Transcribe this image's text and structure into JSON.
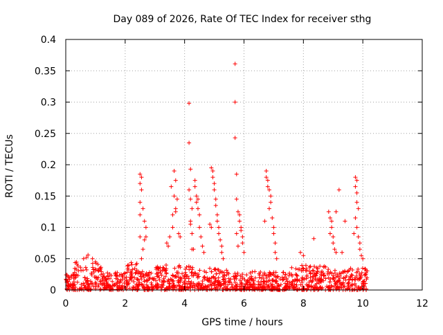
{
  "chart_data": {
    "type": "scatter",
    "title": "Day 089 of 2026, Rate Of TEC Index for receiver sthg",
    "xlabel": "GPS time / hours",
    "ylabel": "ROTI / TECUs",
    "xlim": [
      0,
      12
    ],
    "ylim": [
      0,
      0.4
    ],
    "x_ticks": [
      0,
      2,
      4,
      6,
      8,
      10,
      12
    ],
    "y_ticks": [
      0,
      0.05,
      0.1,
      0.15,
      0.2,
      0.25,
      0.3,
      0.35,
      0.4
    ],
    "x_tick_labels": [
      "0",
      "2",
      "4",
      "6",
      "8",
      "10",
      "12"
    ],
    "y_tick_labels": [
      "0",
      "0.05",
      "0.1",
      "0.15",
      "0.2",
      "0.25",
      "0.3",
      "0.35",
      "0.4"
    ],
    "grid": true,
    "marker": "+",
    "color": "#ff0000",
    "series": [
      {
        "name": "ROTI",
        "notes": "dense background cluster 0.0-0.05 TECU from 0 to ~10.2 h; selected elevated points listed",
        "points": [
          [
            0.6,
            0.05
          ],
          [
            0.7,
            0.052
          ],
          [
            0.75,
            0.056
          ],
          [
            0.9,
            0.05
          ],
          [
            1.0,
            0.045
          ],
          [
            2.5,
            0.185
          ],
          [
            2.55,
            0.18
          ],
          [
            2.5,
            0.17
          ],
          [
            2.55,
            0.16
          ],
          [
            2.5,
            0.14
          ],
          [
            2.6,
            0.13
          ],
          [
            2.65,
            0.11
          ],
          [
            2.7,
            0.1
          ],
          [
            2.7,
            0.085
          ],
          [
            2.65,
            0.08
          ],
          [
            2.5,
            0.12
          ],
          [
            2.5,
            0.085
          ],
          [
            2.6,
            0.065
          ],
          [
            2.55,
            0.05
          ],
          [
            3.4,
            0.075
          ],
          [
            3.45,
            0.07
          ],
          [
            3.5,
            0.085
          ],
          [
            3.6,
            0.12
          ],
          [
            3.6,
            0.1
          ],
          [
            3.65,
            0.19
          ],
          [
            3.7,
            0.175
          ],
          [
            3.65,
            0.15
          ],
          [
            3.75,
            0.145
          ],
          [
            3.7,
            0.13
          ],
          [
            3.7,
            0.125
          ],
          [
            3.8,
            0.09
          ],
          [
            3.85,
            0.085
          ],
          [
            3.55,
            0.165
          ],
          [
            4.15,
            0.298
          ],
          [
            4.15,
            0.235
          ],
          [
            4.2,
            0.193
          ],
          [
            4.15,
            0.16
          ],
          [
            4.2,
            0.145
          ],
          [
            4.25,
            0.13
          ],
          [
            4.2,
            0.11
          ],
          [
            4.2,
            0.105
          ],
          [
            4.25,
            0.09
          ],
          [
            4.25,
            0.065
          ],
          [
            4.35,
            0.175
          ],
          [
            4.35,
            0.165
          ],
          [
            4.4,
            0.15
          ],
          [
            4.45,
            0.145
          ],
          [
            4.4,
            0.14
          ],
          [
            4.45,
            0.13
          ],
          [
            4.5,
            0.12
          ],
          [
            4.5,
            0.1
          ],
          [
            4.55,
            0.085
          ],
          [
            4.6,
            0.07
          ],
          [
            4.65,
            0.06
          ],
          [
            4.3,
            0.065
          ],
          [
            4.9,
            0.195
          ],
          [
            4.95,
            0.19
          ],
          [
            4.95,
            0.18
          ],
          [
            5.0,
            0.17
          ],
          [
            5.0,
            0.16
          ],
          [
            5.05,
            0.145
          ],
          [
            5.05,
            0.135
          ],
          [
            5.1,
            0.12
          ],
          [
            5.1,
            0.11
          ],
          [
            5.15,
            0.1
          ],
          [
            5.15,
            0.09
          ],
          [
            5.2,
            0.08
          ],
          [
            5.25,
            0.07
          ],
          [
            5.25,
            0.06
          ],
          [
            4.85,
            0.105
          ],
          [
            4.9,
            0.1
          ],
          [
            5.3,
            0.05
          ],
          [
            5.7,
            0.361
          ],
          [
            5.7,
            0.3
          ],
          [
            5.7,
            0.243
          ],
          [
            5.75,
            0.185
          ],
          [
            5.75,
            0.145
          ],
          [
            5.8,
            0.125
          ],
          [
            5.85,
            0.12
          ],
          [
            5.85,
            0.11
          ],
          [
            5.9,
            0.1
          ],
          [
            5.9,
            0.095
          ],
          [
            5.95,
            0.085
          ],
          [
            5.95,
            0.075
          ],
          [
            5.75,
            0.09
          ],
          [
            5.8,
            0.07
          ],
          [
            6.0,
            0.06
          ],
          [
            6.75,
            0.19
          ],
          [
            6.75,
            0.18
          ],
          [
            6.8,
            0.175
          ],
          [
            6.8,
            0.165
          ],
          [
            6.85,
            0.16
          ],
          [
            6.9,
            0.15
          ],
          [
            6.9,
            0.14
          ],
          [
            6.85,
            0.13
          ],
          [
            6.95,
            0.115
          ],
          [
            7.0,
            0.1
          ],
          [
            7.0,
            0.09
          ],
          [
            7.05,
            0.075
          ],
          [
            7.05,
            0.06
          ],
          [
            7.1,
            0.05
          ],
          [
            6.7,
            0.11
          ],
          [
            7.9,
            0.06
          ],
          [
            8.0,
            0.055
          ],
          [
            8.35,
            0.082
          ],
          [
            8.85,
            0.125
          ],
          [
            8.9,
            0.115
          ],
          [
            8.95,
            0.11
          ],
          [
            8.95,
            0.1
          ],
          [
            9.0,
            0.085
          ],
          [
            9.0,
            0.075
          ],
          [
            9.05,
            0.065
          ],
          [
            9.1,
            0.06
          ],
          [
            9.1,
            0.125
          ],
          [
            8.9,
            0.09
          ],
          [
            9.2,
            0.16
          ],
          [
            9.4,
            0.11
          ],
          [
            9.3,
            0.06
          ],
          [
            9.75,
            0.18
          ],
          [
            9.8,
            0.175
          ],
          [
            9.75,
            0.165
          ],
          [
            9.8,
            0.155
          ],
          [
            9.8,
            0.14
          ],
          [
            9.85,
            0.13
          ],
          [
            9.75,
            0.115
          ],
          [
            9.8,
            0.1
          ],
          [
            9.85,
            0.085
          ],
          [
            9.9,
            0.075
          ],
          [
            9.9,
            0.065
          ],
          [
            9.95,
            0.055
          ],
          [
            10.0,
            0.05
          ],
          [
            9.7,
            0.09
          ]
        ]
      }
    ]
  }
}
